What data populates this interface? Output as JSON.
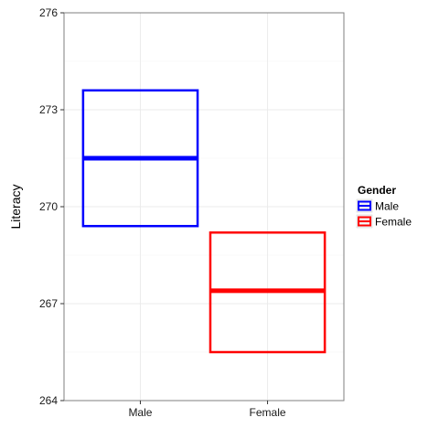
{
  "chart_data": {
    "type": "crossbar",
    "title": "",
    "xlabel": "",
    "ylabel": "Literacy",
    "ylim": [
      264,
      276
    ],
    "yticks": [
      264,
      267,
      270,
      273,
      276
    ],
    "categories": [
      "Male",
      "Female"
    ],
    "series": [
      {
        "name": "Male",
        "category": "Male",
        "color": "#0000ff",
        "lower": 269.4,
        "middle": 271.5,
        "upper": 273.6
      },
      {
        "name": "Female",
        "category": "Female",
        "color": "#ff0000",
        "lower": 265.5,
        "middle": 267.4,
        "upper": 269.2
      }
    ],
    "legend": {
      "title": "Gender",
      "position": "right",
      "items": [
        "Male",
        "Female"
      ]
    },
    "grid": true,
    "theme": "bw"
  }
}
